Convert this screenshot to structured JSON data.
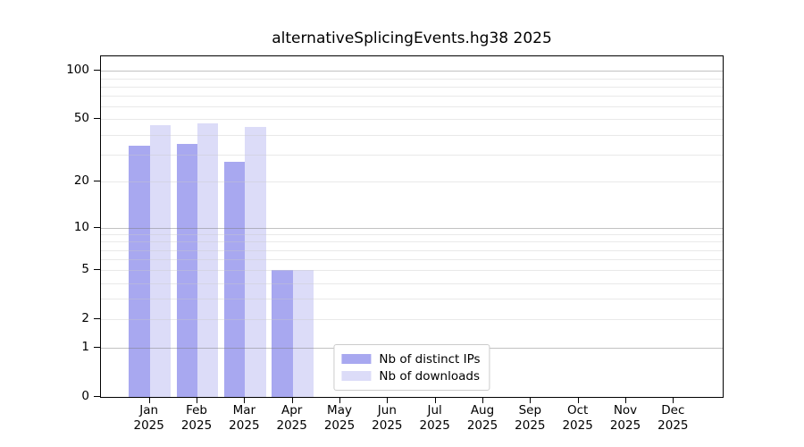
{
  "chart_data": {
    "type": "bar",
    "title": "alternativeSplicingEvents.hg38 2025",
    "scale": "log1p",
    "grid": "both",
    "legend_position": "lower center",
    "categories": [
      "Jan",
      "Feb",
      "Mar",
      "Apr",
      "May",
      "Jun",
      "Jul",
      "Aug",
      "Sep",
      "Oct",
      "Nov",
      "Dec"
    ],
    "category_year": "2025",
    "series": [
      {
        "name": "Nb of distinct IPs",
        "color": "#a8a8f0",
        "values": [
          34,
          35,
          27,
          5,
          0,
          0,
          0,
          0,
          0,
          0,
          0,
          0
        ]
      },
      {
        "name": "Nb of downloads",
        "color": "#dcdcf8",
        "values": [
          46,
          47,
          45,
          5,
          0,
          0,
          0,
          0,
          0,
          0,
          0,
          0
        ]
      }
    ],
    "y_ticks": [
      100,
      50,
      20,
      10,
      5,
      2,
      1,
      0
    ],
    "y_major_gridlines": [
      100,
      10,
      1
    ],
    "y_minor_gridlines": [
      90,
      80,
      70,
      60,
      50,
      40,
      30,
      20,
      9,
      8,
      7,
      6,
      5,
      4,
      3,
      2
    ],
    "ylim": [
      0,
      120
    ],
    "axis_color": "#000000",
    "major_grid_color": "#c2c2c2",
    "minor_grid_color": "#ebebeb",
    "legend_border_color": "#cccccc"
  }
}
